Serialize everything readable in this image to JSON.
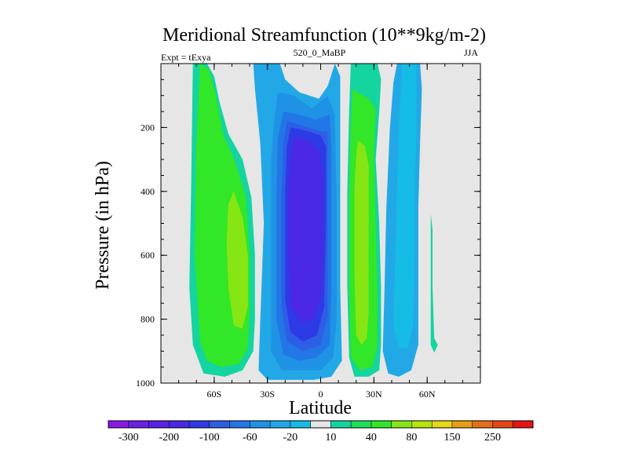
{
  "chart_data": {
    "type": "contour",
    "title": "Meridional Streamfunction (10**9kg/m-2)",
    "left_label": "Expt = tExya",
    "center_label": "520_0_MaBP",
    "right_label": "JJA",
    "xlabel": "Latitude",
    "ylabel": "Pressure (in hPa)",
    "x_ticks": [
      {
        "value": -60,
        "label": "60S"
      },
      {
        "value": -30,
        "label": "30S"
      },
      {
        "value": 0,
        "label": "0"
      },
      {
        "value": 30,
        "label": "30N"
      },
      {
        "value": 60,
        "label": "60N"
      }
    ],
    "y_ticks": [
      {
        "value": 200,
        "label": "200"
      },
      {
        "value": 400,
        "label": "400"
      },
      {
        "value": 600,
        "label": "600"
      },
      {
        "value": 800,
        "label": "800"
      },
      {
        "value": 1000,
        "label": "1000"
      }
    ],
    "xlim": [
      -90,
      90
    ],
    "ylim": [
      0,
      1000
    ],
    "y_inverted": true,
    "grid": false,
    "background_color": "#e6e6e6",
    "colorbar": {
      "levels": [
        -300,
        -250,
        -200,
        -150,
        -100,
        -80,
        -60,
        -40,
        -20,
        -10,
        10,
        20,
        40,
        60,
        80,
        100,
        150,
        200,
        250,
        300
      ],
      "labels": [
        "-300",
        "-200",
        "-100",
        "-60",
        "-20",
        "10",
        "40",
        "80",
        "150",
        "250"
      ],
      "colors": [
        "#8a1ae8",
        "#6f1ee6",
        "#5a22e6",
        "#4a28e6",
        "#2d3ae6",
        "#2d5ee6",
        "#2276e6",
        "#1f92e6",
        "#22a8e6",
        "#14bce6",
        "#e6e6e6",
        "#14d4a0",
        "#1ee05a",
        "#32e628",
        "#86e614",
        "#b4e60a",
        "#e6d814",
        "#e6a014",
        "#e66e14",
        "#e64614",
        "#e61414"
      ]
    },
    "regions": [
      {
        "name": "sh-cell-outer",
        "value": 15,
        "color": "#14d4a0",
        "points": [
          [
            -72,
            0
          ],
          [
            -64,
            0
          ],
          [
            -60,
            40
          ],
          [
            -57,
            120
          ],
          [
            -52,
            220
          ],
          [
            -44,
            300
          ],
          [
            -39,
            420
          ],
          [
            -37,
            600
          ],
          [
            -37,
            800
          ],
          [
            -38,
            900
          ],
          [
            -44,
            960
          ],
          [
            -54,
            980
          ],
          [
            -66,
            970
          ],
          [
            -72,
            880
          ],
          [
            -74,
            700
          ],
          [
            -73,
            400
          ]
        ]
      },
      {
        "name": "sh-cell-40",
        "value": 30,
        "color": "#32e628",
        "points": [
          [
            -68,
            0
          ],
          [
            -63,
            20
          ],
          [
            -59,
            100
          ],
          [
            -55,
            220
          ],
          [
            -48,
            310
          ],
          [
            -42,
            420
          ],
          [
            -40,
            600
          ],
          [
            -40,
            780
          ],
          [
            -41,
            890
          ],
          [
            -46,
            940
          ],
          [
            -56,
            950
          ],
          [
            -64,
            930
          ],
          [
            -68,
            870
          ],
          [
            -71,
            600
          ],
          [
            -70,
            250
          ]
        ]
      },
      {
        "name": "sh-cell-80",
        "value": 60,
        "color": "#86e614",
        "points": [
          [
            -49,
            400
          ],
          [
            -44,
            480
          ],
          [
            -41,
            600
          ],
          [
            -41,
            760
          ],
          [
            -44,
            830
          ],
          [
            -49,
            820
          ],
          [
            -52,
            700
          ],
          [
            -53,
            560
          ],
          [
            -52,
            440
          ]
        ]
      },
      {
        "name": "eq-cell-20",
        "value": -15,
        "color": "#22a8e6",
        "points": [
          [
            -38,
            0
          ],
          [
            -23,
            0
          ],
          [
            -20,
            50
          ],
          [
            -12,
            90
          ],
          [
            -1,
            110
          ],
          [
            4,
            70
          ],
          [
            8,
            0
          ],
          [
            11,
            40
          ],
          [
            11,
            300
          ],
          [
            11,
            700
          ],
          [
            12,
            930
          ],
          [
            6,
            980
          ],
          [
            -4,
            990
          ],
          [
            -14,
            990
          ],
          [
            -22,
            990
          ],
          [
            -30,
            990
          ],
          [
            -35,
            960
          ],
          [
            -34,
            800
          ],
          [
            -32,
            500
          ],
          [
            -34,
            250
          ],
          [
            -37,
            80
          ]
        ]
      },
      {
        "name": "eq-cell-40",
        "value": -30,
        "color": "#1f92e6",
        "points": [
          [
            -24,
            90
          ],
          [
            -15,
            100
          ],
          [
            -5,
            140
          ],
          [
            4,
            100
          ],
          [
            8,
            160
          ],
          [
            9,
            450
          ],
          [
            9,
            800
          ],
          [
            7,
            920
          ],
          [
            0,
            960
          ],
          [
            -12,
            960
          ],
          [
            -22,
            960
          ],
          [
            -28,
            900
          ],
          [
            -28,
            600
          ],
          [
            -28,
            300
          ],
          [
            -26,
            170
          ]
        ]
      },
      {
        "name": "eq-cell-60",
        "value": -50,
        "color": "#2276e6",
        "points": [
          [
            -21,
            150
          ],
          [
            -12,
            160
          ],
          [
            -3,
            175
          ],
          [
            5,
            160
          ],
          [
            6,
            260
          ],
          [
            6,
            700
          ],
          [
            5,
            880
          ],
          [
            -2,
            920
          ],
          [
            -12,
            930
          ],
          [
            -21,
            910
          ],
          [
            -25,
            800
          ],
          [
            -25,
            400
          ],
          [
            -24,
            230
          ]
        ]
      },
      {
        "name": "eq-cell-80",
        "value": -70,
        "color": "#2d5ee6",
        "points": [
          [
            -19,
            180
          ],
          [
            -10,
            195
          ],
          [
            -1,
            210
          ],
          [
            4,
            215
          ],
          [
            4,
            500
          ],
          [
            4,
            790
          ],
          [
            0,
            880
          ],
          [
            -10,
            900
          ],
          [
            -19,
            870
          ],
          [
            -22,
            760
          ],
          [
            -22,
            400
          ],
          [
            -21,
            250
          ]
        ]
      },
      {
        "name": "eq-cell-100",
        "value": -90,
        "color": "#2d3ae6",
        "points": [
          [
            -17,
            200
          ],
          [
            -8,
            210
          ],
          [
            0,
            225
          ],
          [
            3,
            260
          ],
          [
            3,
            500
          ],
          [
            2,
            760
          ],
          [
            -2,
            850
          ],
          [
            -10,
            870
          ],
          [
            -17,
            840
          ],
          [
            -20,
            740
          ],
          [
            -20,
            400
          ],
          [
            -19,
            260
          ]
        ]
      },
      {
        "name": "eq-cell-150",
        "value": -125,
        "color": "#4a28e6",
        "points": [
          [
            -15,
            230
          ],
          [
            -6,
            245
          ],
          [
            -1,
            275
          ],
          [
            1,
            350
          ],
          [
            1,
            600
          ],
          [
            0,
            730
          ],
          [
            -4,
            800
          ],
          [
            -11,
            810
          ],
          [
            -17,
            760
          ],
          [
            -18,
            600
          ],
          [
            -18,
            400
          ],
          [
            -17,
            290
          ]
        ]
      },
      {
        "name": "nh-cell-10",
        "value": 15,
        "color": "#14d4a0",
        "points": [
          [
            17,
            0
          ],
          [
            32,
            0
          ],
          [
            34,
            50
          ],
          [
            33,
            150
          ],
          [
            31,
            300
          ],
          [
            33,
            500
          ],
          [
            34,
            700
          ],
          [
            34,
            880
          ],
          [
            33,
            960
          ],
          [
            27,
            980
          ],
          [
            19,
            980
          ],
          [
            16,
            920
          ],
          [
            15,
            700
          ],
          [
            15,
            400
          ],
          [
            16,
            150
          ]
        ]
      },
      {
        "name": "nh-cell-40",
        "value": 30,
        "color": "#32e628",
        "points": [
          [
            18,
            80
          ],
          [
            27,
            110
          ],
          [
            31,
            140
          ],
          [
            30,
            300
          ],
          [
            31,
            500
          ],
          [
            32,
            700
          ],
          [
            32,
            880
          ],
          [
            29,
            950
          ],
          [
            22,
            960
          ],
          [
            17,
            920
          ],
          [
            16,
            700
          ],
          [
            16,
            400
          ],
          [
            17,
            180
          ]
        ]
      },
      {
        "name": "nh-cell-80",
        "value": 60,
        "color": "#86e614",
        "points": [
          [
            21,
            240
          ],
          [
            25,
            260
          ],
          [
            27,
            320
          ],
          [
            27,
            550
          ],
          [
            27,
            780
          ],
          [
            26,
            860
          ],
          [
            23,
            880
          ],
          [
            20,
            850
          ],
          [
            19,
            650
          ],
          [
            19,
            400
          ],
          [
            20,
            290
          ]
        ]
      },
      {
        "name": "nh-cell-neg-10",
        "value": -15,
        "color": "#22a8e6",
        "points": [
          [
            43,
            0
          ],
          [
            56,
            0
          ],
          [
            57,
            80
          ],
          [
            56,
            250
          ],
          [
            55,
            450
          ],
          [
            55,
            700
          ],
          [
            55,
            880
          ],
          [
            51,
            960
          ],
          [
            44,
            980
          ],
          [
            38,
            970
          ],
          [
            35,
            900
          ],
          [
            36,
            700
          ],
          [
            37,
            450
          ],
          [
            39,
            200
          ],
          [
            41,
            60
          ]
        ]
      },
      {
        "name": "nh-cell-neg-20",
        "value": -12,
        "color": "#14bce6",
        "points": [
          [
            46,
            0
          ],
          [
            54,
            0
          ],
          [
            54,
            200
          ],
          [
            53,
            400
          ],
          [
            53,
            600
          ],
          [
            52,
            820
          ],
          [
            49,
            890
          ],
          [
            44,
            890
          ],
          [
            41,
            820
          ],
          [
            42,
            600
          ],
          [
            43,
            400
          ],
          [
            44,
            200
          ]
        ]
      },
      {
        "name": "nh-sliver",
        "value": 12,
        "color": "#14d4a0",
        "points": [
          [
            62,
            470
          ],
          [
            63,
            520
          ],
          [
            63,
            700
          ],
          [
            64,
            860
          ],
          [
            66,
            880
          ],
          [
            64,
            905
          ],
          [
            62,
            880
          ],
          [
            62,
            700
          ]
        ]
      }
    ]
  }
}
